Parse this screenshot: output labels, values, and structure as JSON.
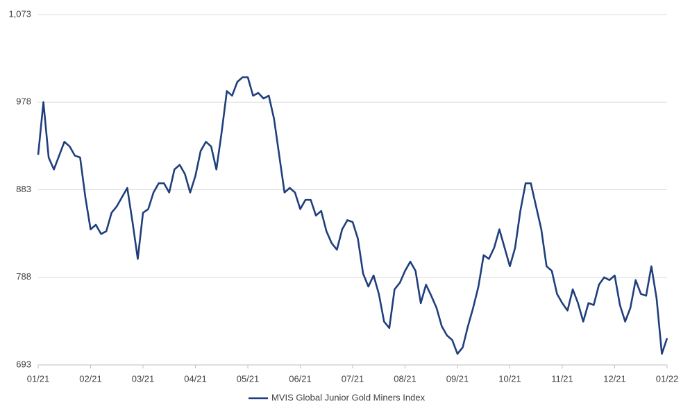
{
  "chart_data": {
    "type": "line",
    "categories": [
      "01/21",
      null,
      null,
      null,
      null,
      null,
      null,
      null,
      null,
      null,
      "02/21",
      null,
      null,
      null,
      null,
      null,
      null,
      null,
      null,
      null,
      "03/21",
      null,
      null,
      null,
      null,
      null,
      null,
      null,
      null,
      null,
      "04/21",
      null,
      null,
      null,
      null,
      null,
      null,
      null,
      null,
      null,
      "05/21",
      null,
      null,
      null,
      null,
      null,
      null,
      null,
      null,
      null,
      "06/21",
      null,
      null,
      null,
      null,
      null,
      null,
      null,
      null,
      null,
      "07/21",
      null,
      null,
      null,
      null,
      null,
      null,
      null,
      null,
      null,
      "08/21",
      null,
      null,
      null,
      null,
      null,
      null,
      null,
      null,
      null,
      "09/21",
      null,
      null,
      null,
      null,
      null,
      null,
      null,
      null,
      null,
      "10/21",
      null,
      null,
      null,
      null,
      null,
      null,
      null,
      null,
      null,
      "11/21",
      null,
      null,
      null,
      null,
      null,
      null,
      null,
      null,
      null,
      "12/21",
      null,
      null,
      null,
      null,
      null,
      null,
      null,
      null,
      null,
      "01/22"
    ],
    "series": [
      {
        "name": "MVIS Global Junior Gold Miners Index",
        "color": "#1f3f7c",
        "values": [
          921,
          978,
          918,
          905,
          920,
          935,
          930,
          920,
          918,
          875,
          840,
          845,
          835,
          838,
          858,
          865,
          875,
          885,
          848,
          808,
          858,
          862,
          880,
          890,
          890,
          880,
          905,
          910,
          900,
          880,
          898,
          925,
          935,
          930,
          905,
          945,
          990,
          985,
          1000,
          1005,
          1005,
          985,
          988,
          982,
          985,
          960,
          920,
          880,
          885,
          880,
          862,
          872,
          872,
          855,
          860,
          838,
          825,
          818,
          840,
          850,
          848,
          830,
          792,
          778,
          790,
          770,
          740,
          733,
          775,
          782,
          795,
          805,
          795,
          760,
          780,
          768,
          755,
          735,
          725,
          720,
          705,
          712,
          735,
          755,
          778,
          812,
          808,
          820,
          840,
          820,
          800,
          820,
          860,
          890,
          890,
          865,
          840,
          800,
          795,
          770,
          760,
          752,
          775,
          760,
          740,
          760,
          758,
          780,
          788,
          785,
          790,
          758,
          740,
          755,
          785,
          770,
          768,
          800,
          765,
          705,
          722
        ]
      }
    ],
    "ylim": [
      693,
      1073
    ],
    "yticks": [
      693,
      788,
      883,
      978,
      {
        "value": 1073,
        "label": "1,073"
      }
    ],
    "grid": true,
    "legend": "bottom"
  }
}
